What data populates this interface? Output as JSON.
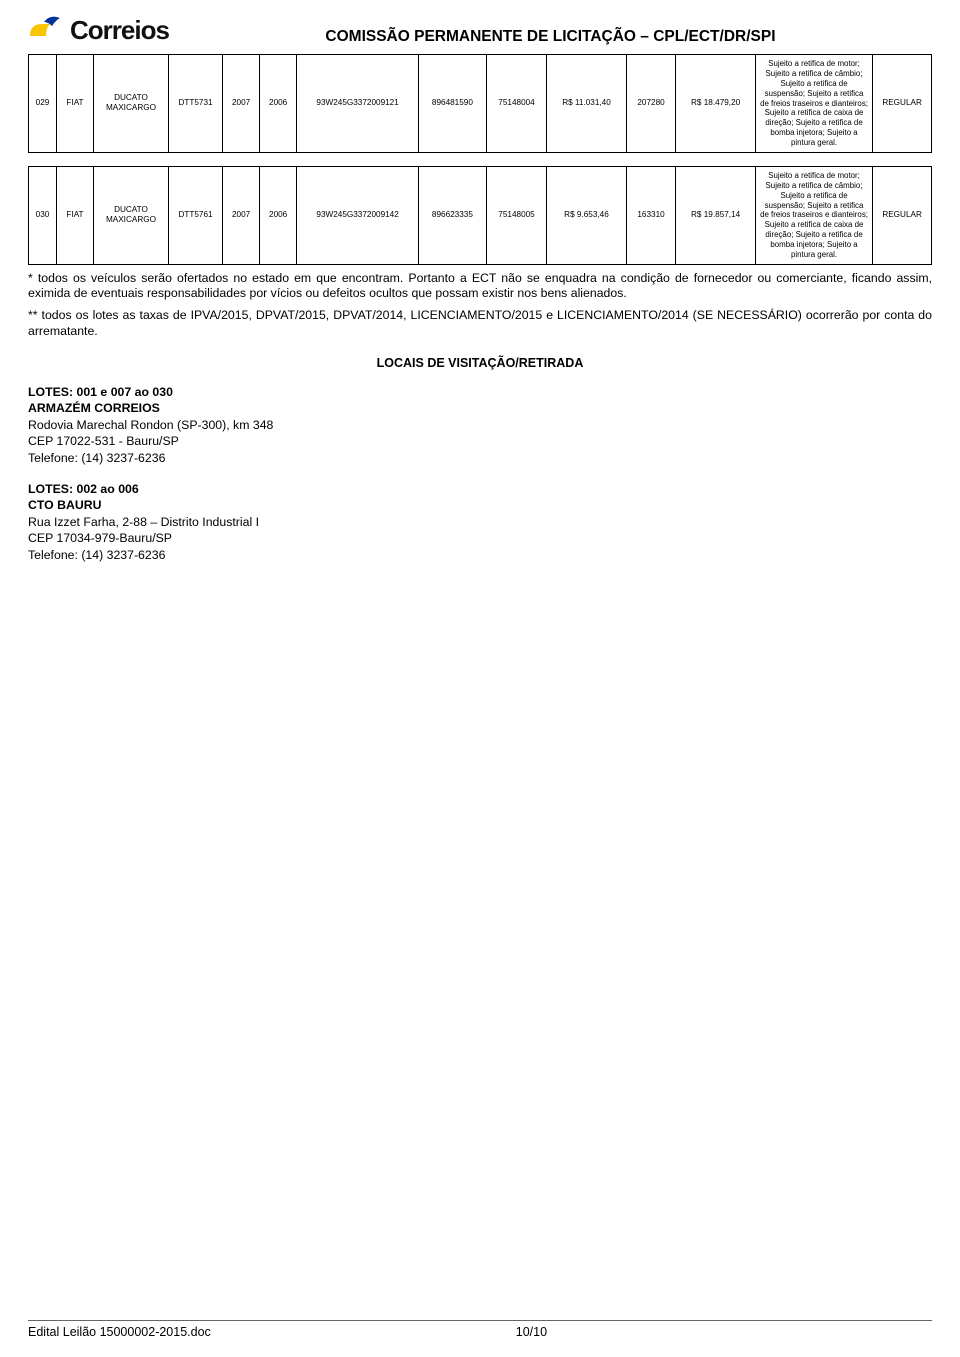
{
  "brand": "Correios",
  "title": "COMISSÃO PERMANENTE DE LICITAÇÃO – CPL/ECT/DR/SPI",
  "col_widths_pct": [
    3.1,
    4.1,
    8.3,
    6.0,
    4.1,
    4.1,
    13.5,
    7.5,
    6.7,
    8.8,
    5.5,
    8.8,
    13.0,
    6.5
  ],
  "rows": [
    {
      "cells": [
        "029",
        "FIAT",
        "DUCATO MAXICARGO",
        "DTT5731",
        "2007",
        "2006",
        "93W245G3372009121",
        "896481590",
        "75148004",
        "R$ 11.031,40",
        "207280",
        "R$ 18.479,20",
        "Sujeito a retifica de motor; Sujeito a retifica de câmbio; Sujeito a retifica de suspensão; Sujeito a retifica de freios traseiros e dianteiros; Sujeito a retifica de caixa de direção; Sujeito a retifica de bomba injetora; Sujeito a pintura geral.",
        "REGULAR"
      ]
    },
    {
      "cells": [
        "030",
        "FIAT",
        "DUCATO MAXICARGO",
        "DTT5761",
        "2007",
        "2006",
        "93W245G3372009142",
        "896623335",
        "75148005",
        "R$ 9.653,46",
        "163310",
        "R$ 19.857,14",
        "Sujeito a retifica de motor; Sujeito a retifica de câmbio; Sujeito a retifica de suspensão; Sujeito a retifica de freios traseiros e dianteiros; Sujeito a retifica de caixa de direção; Sujeito a retifica de bomba injetora; Sujeito a pintura geral.",
        "REGULAR"
      ]
    }
  ],
  "note1": "* todos os veículos serão ofertados no estado em que encontram. Portanto a ECT não se enquadra na condição de fornecedor ou comerciante, ficando assim, eximida de eventuais responsabilidades por vícios ou defeitos ocultos que possam existir nos bens alienados.",
  "note2": " ** todos os lotes as taxas de IPVA/2015, DPVAT/2015, DPVAT/2014, LICENCIAMENTO/2015 e LICENCIAMENTO/2014 (SE NECESSÁRIO) ocorrerão por conta do arrematante.",
  "section_heading": "LOCAIS DE VISITAÇÃO/RETIRADA",
  "lot_blocks": [
    {
      "title": "LOTES: 001 e 007 ao 030",
      "name": "ARMAZÉM CORREIOS",
      "lines": [
        "Rodovia Marechal Rondon (SP-300), km 348",
        "CEP 17022-531 - Bauru/SP",
        "Telefone: (14) 3237-6236"
      ]
    },
    {
      "title": "LOTES: 002 ao 006",
      "name": "CTO BAURU",
      "lines": [
        "Rua Izzet Farha, 2-88 – Distrito Industrial I",
        "CEP 17034-979-Bauru/SP",
        "Telefone: (14) 3237-6236"
      ]
    }
  ],
  "footer_file": "Edital Leilão 15000002-2015.doc",
  "footer_page": "10/10",
  "colors": {
    "text": "#000000",
    "bg": "#ffffff",
    "logo_yellow": "#f7c600",
    "logo_blue": "#003399"
  }
}
